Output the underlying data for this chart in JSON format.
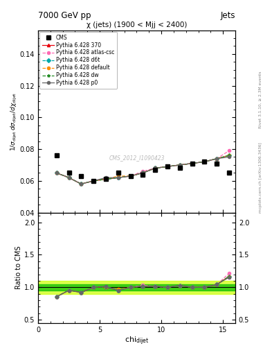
{
  "title_top_left": "7000 GeV pp",
  "title_top_right": "Jets",
  "plot_title": "χ (jets) (1900 < Mjj < 2400)",
  "ylabel_main": "1/σ_{dijet} dσ_{dijet} / dchi_{dijet}",
  "ylabel_ratio": "Ratio to CMS",
  "watermark": "CMS_2012_I1090423",
  "rivet_text": "Rivet 3.1.10, ≥ 2.3M events",
  "arxiv_text": "mcplots.cern.ch [arXiv:1306.3436]",
  "cms_x": [
    1.5,
    2.5,
    3.5,
    4.5,
    5.5,
    6.5,
    7.5,
    8.5,
    9.5,
    10.5,
    11.5,
    12.5,
    13.5,
    14.5,
    15.5
  ],
  "cms_y": [
    0.076,
    0.065,
    0.063,
    0.06,
    0.061,
    0.065,
    0.063,
    0.064,
    0.067,
    0.069,
    0.068,
    0.071,
    0.072,
    0.071,
    0.065
  ],
  "chi_x": [
    1.5,
    2.5,
    3.5,
    4.5,
    5.5,
    6.5,
    7.5,
    8.5,
    9.5,
    10.5,
    11.5,
    12.5,
    13.5,
    14.5,
    15.5
  ],
  "py370_y": [
    0.065,
    0.062,
    0.058,
    0.06,
    0.061,
    0.062,
    0.063,
    0.065,
    0.068,
    0.069,
    0.07,
    0.071,
    0.072,
    0.074,
    0.076
  ],
  "py_atlas_y": [
    0.065,
    0.062,
    0.058,
    0.06,
    0.061,
    0.062,
    0.063,
    0.066,
    0.068,
    0.069,
    0.07,
    0.071,
    0.072,
    0.074,
    0.079
  ],
  "py_d6t_y": [
    0.065,
    0.062,
    0.058,
    0.06,
    0.061,
    0.062,
    0.063,
    0.065,
    0.068,
    0.069,
    0.07,
    0.071,
    0.072,
    0.074,
    0.076
  ],
  "py_default_y": [
    0.065,
    0.062,
    0.058,
    0.06,
    0.061,
    0.063,
    0.063,
    0.065,
    0.068,
    0.069,
    0.07,
    0.071,
    0.072,
    0.074,
    0.076
  ],
  "py_dw_y": [
    0.065,
    0.062,
    0.058,
    0.06,
    0.061,
    0.062,
    0.063,
    0.065,
    0.068,
    0.069,
    0.07,
    0.071,
    0.072,
    0.074,
    0.076
  ],
  "py_p0_y": [
    0.065,
    0.062,
    0.058,
    0.06,
    0.062,
    0.062,
    0.063,
    0.065,
    0.068,
    0.069,
    0.07,
    0.071,
    0.072,
    0.074,
    0.075
  ],
  "ratio_370": [
    0.855,
    0.954,
    0.921,
    1.0,
    1.0,
    0.954,
    1.0,
    1.016,
    1.015,
    1.0,
    1.029,
    1.0,
    1.0,
    1.042,
    1.169
  ],
  "ratio_atlas": [
    0.855,
    0.954,
    0.921,
    1.0,
    1.0,
    0.954,
    1.0,
    1.031,
    1.015,
    1.0,
    1.029,
    1.0,
    1.0,
    1.042,
    1.215
  ],
  "ratio_d6t": [
    0.855,
    0.954,
    0.921,
    1.0,
    1.0,
    0.954,
    1.0,
    1.016,
    1.015,
    1.0,
    1.029,
    1.0,
    1.0,
    1.042,
    1.169
  ],
  "ratio_default": [
    0.855,
    0.954,
    0.921,
    1.0,
    1.0,
    0.969,
    1.0,
    1.016,
    1.015,
    1.0,
    1.029,
    1.0,
    1.0,
    1.042,
    1.169
  ],
  "ratio_dw": [
    0.855,
    0.954,
    0.921,
    1.0,
    1.0,
    0.954,
    1.0,
    1.016,
    1.015,
    1.0,
    1.029,
    1.0,
    1.0,
    1.042,
    1.169
  ],
  "ratio_p0": [
    0.855,
    0.954,
    0.921,
    1.0,
    1.016,
    0.954,
    1.0,
    1.016,
    1.015,
    1.0,
    1.029,
    1.0,
    1.0,
    1.042,
    1.154
  ],
  "color_370": "#e8000b",
  "color_atlas": "#ff69b4",
  "color_d6t": "#00aaaa",
  "color_default": "#ff8c00",
  "color_dw": "#228B22",
  "color_p0": "#666666",
  "color_cms": "#000000",
  "band_inner_color": "#00bb00",
  "band_outer_color": "#ccff00",
  "band_inner_half": 0.05,
  "band_outer_half": 0.1,
  "ylim_main": [
    0.04,
    0.155
  ],
  "ylim_ratio": [
    0.45,
    2.15
  ],
  "xlim": [
    0,
    16
  ],
  "yticks_main": [
    0.04,
    0.06,
    0.08,
    0.1,
    0.12,
    0.14
  ],
  "yticks_ratio": [
    0.5,
    1.0,
    1.5,
    2.0
  ],
  "xticks": [
    0,
    5,
    10,
    15
  ]
}
